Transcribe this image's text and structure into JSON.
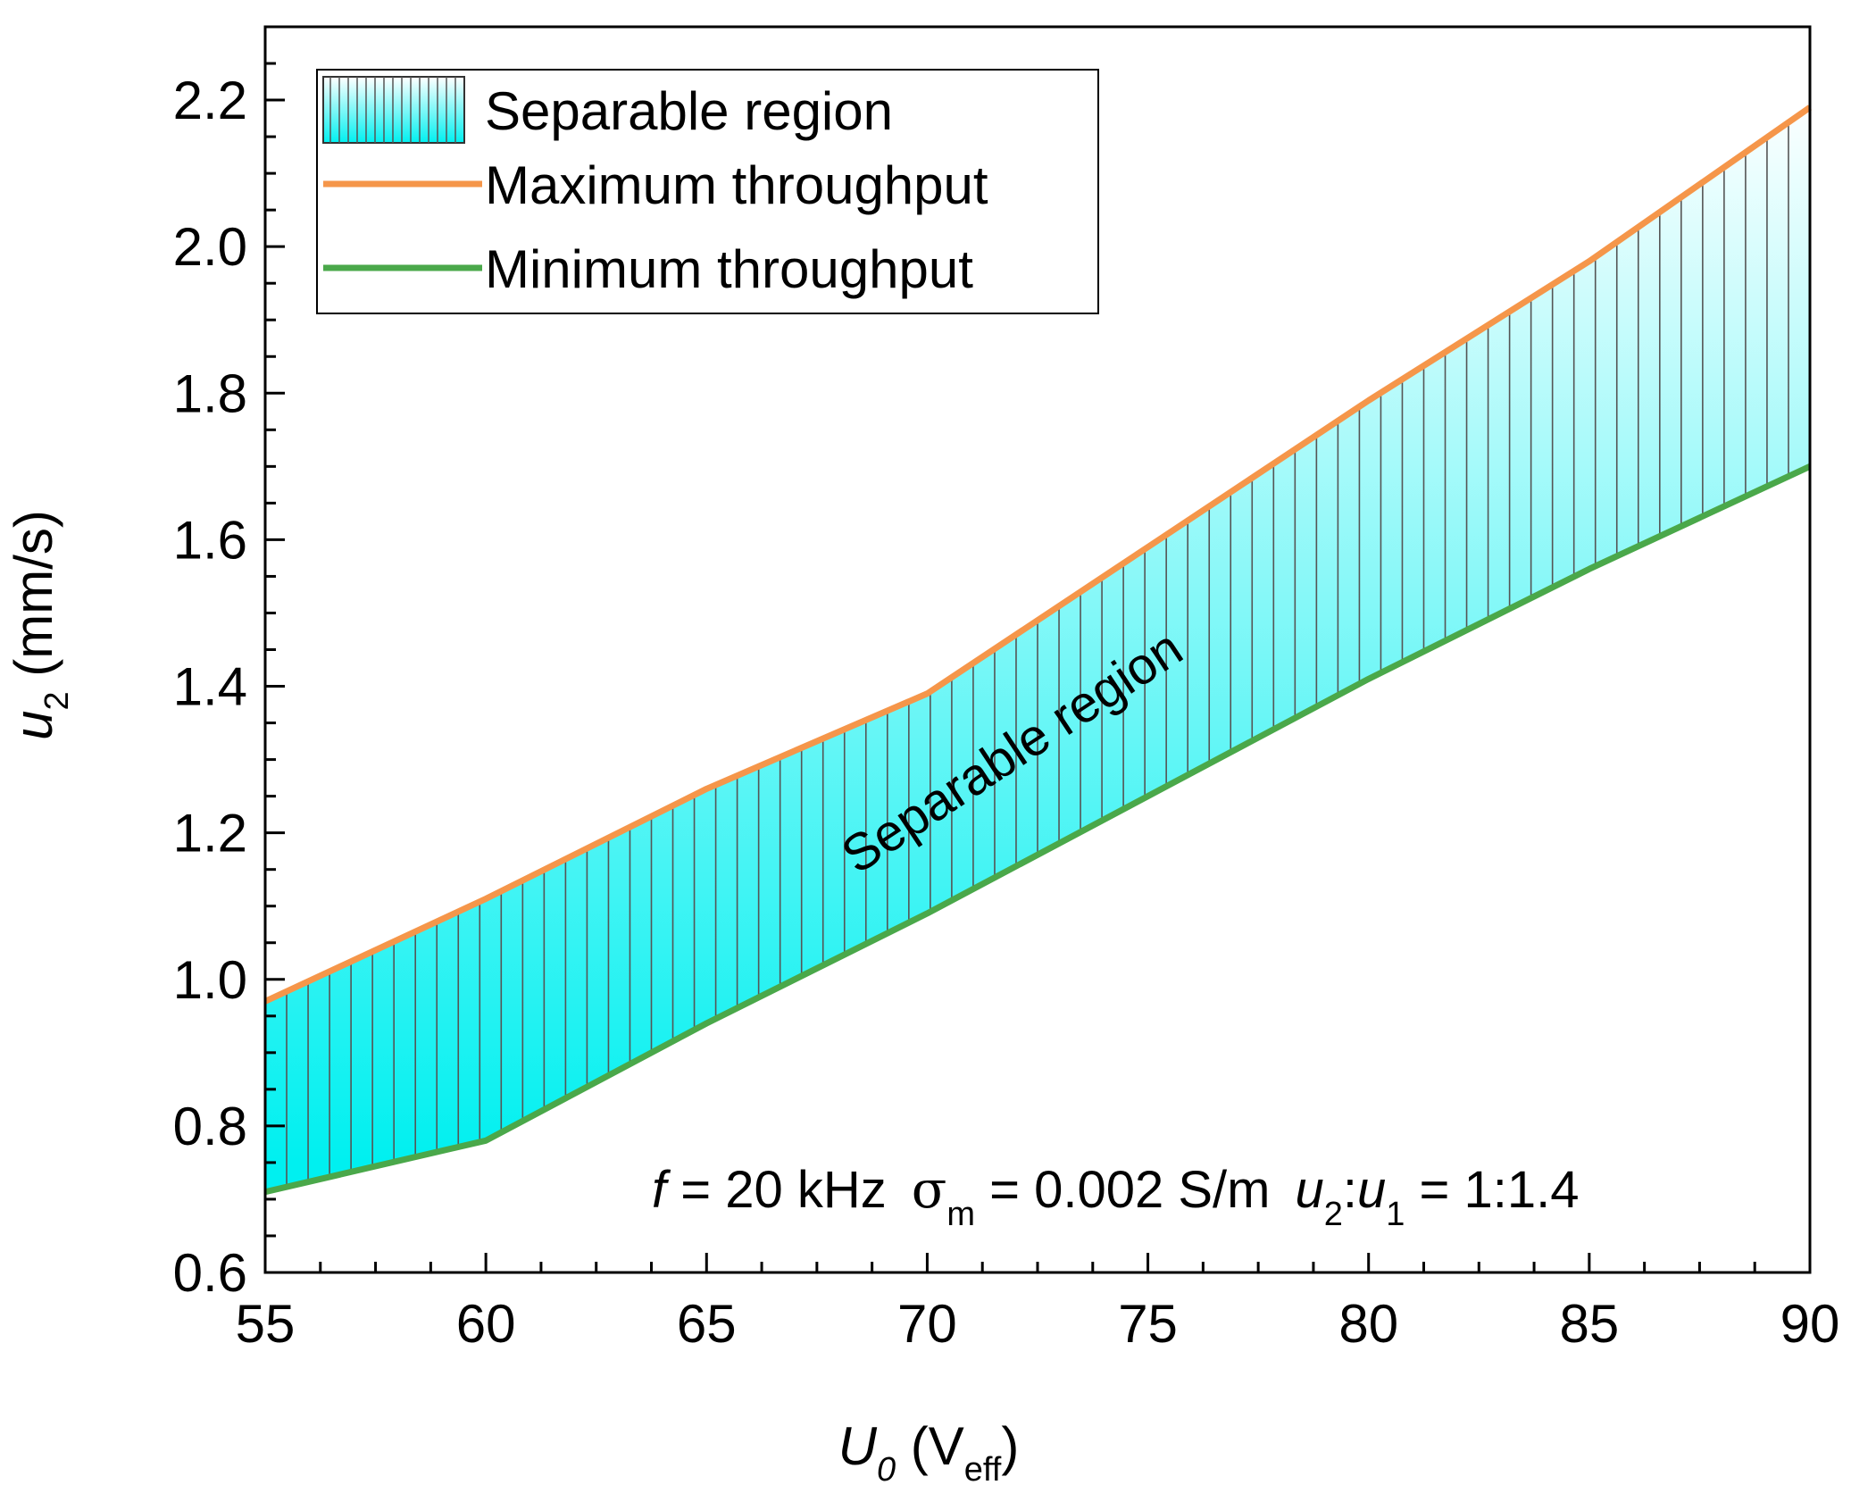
{
  "chart_data": {
    "type": "area",
    "x": [
      55,
      60,
      65,
      70,
      75,
      80,
      85,
      90
    ],
    "series": [
      {
        "name": "Maximum throughput",
        "color": "#f5964a",
        "values": [
          0.97,
          1.11,
          1.26,
          1.39,
          1.59,
          1.79,
          1.98,
          2.19
        ]
      },
      {
        "name": "Minimum throughput",
        "color": "#4aa84a",
        "values": [
          0.71,
          0.78,
          0.94,
          1.09,
          1.25,
          1.41,
          1.56,
          1.7
        ]
      }
    ],
    "fill": {
      "name": "Separable region",
      "label": "Separable region",
      "color_from": "#00f0f0",
      "color_to": "#ffffff"
    },
    "xlim": [
      55,
      90
    ],
    "ylim": [
      0.6,
      2.3
    ],
    "xticks": [
      "55",
      "60",
      "65",
      "70",
      "75",
      "80",
      "85",
      "90"
    ],
    "yticks": [
      "0.6",
      "0.8",
      "1.0",
      "1.2",
      "1.4",
      "1.6",
      "1.8",
      "2.0",
      "2.2"
    ],
    "xlabel": {
      "main": "U",
      "sub": "0",
      "paren_open": " (V",
      "unit_sub": "eff",
      "paren_close": ")"
    },
    "ylabel": {
      "main": "u",
      "sub": "2",
      "rest": " (mm/s)"
    },
    "legend": [
      {
        "label": "Separable region",
        "kind": "fill"
      },
      {
        "label": "Maximum throughput",
        "kind": "line",
        "color": "#f5964a"
      },
      {
        "label": "Minimum throughput",
        "kind": "line",
        "color": "#4aa84a"
      }
    ],
    "annotation": {
      "f": "f",
      "f_val": " = 20 kHz",
      "sigma": "σ",
      "sigma_sub": "m",
      "sigma_val": " = 0.002 S/m",
      "u2": "u",
      "u2_sub": "2",
      "colon": ":",
      "u1": "u",
      "u1_sub": "1",
      "ratio": " = 1:1.4"
    }
  }
}
